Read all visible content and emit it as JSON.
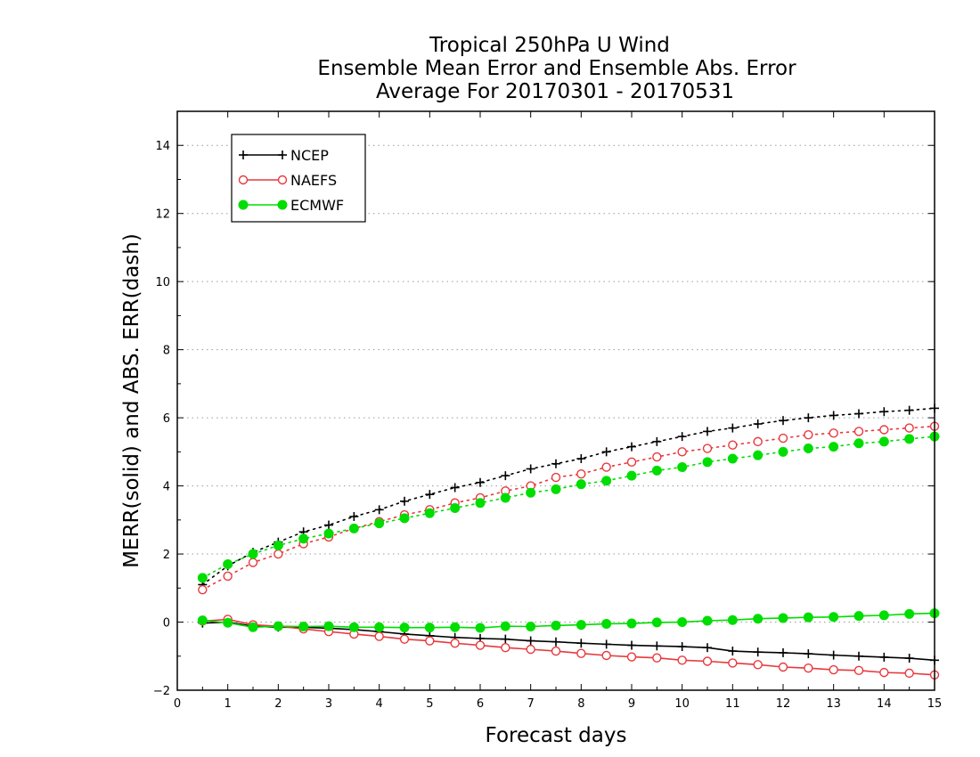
{
  "chart_data": {
    "type": "line",
    "title_lines": [
      "Tropical 250hPa U Wind",
      "Ensemble Mean Error and Ensemble Abs. Error",
      "Average For 20170301 - 20170531"
    ],
    "xlabel": "Forecast days",
    "ylabel": "MERR(solid) and ABS. ERR(dash)",
    "xlim": [
      0,
      15
    ],
    "ylim": [
      -2,
      15
    ],
    "x_ticks": [
      "0",
      "1",
      "2",
      "3",
      "4",
      "5",
      "6",
      "7",
      "8",
      "9",
      "10",
      "11",
      "12",
      "13",
      "14",
      "15"
    ],
    "y_ticks": [
      "−2",
      "0",
      "2",
      "4",
      "6",
      "8",
      "10",
      "12",
      "14"
    ],
    "y_tick_values": [
      -2,
      0,
      2,
      4,
      6,
      8,
      10,
      12,
      14
    ],
    "grid": "horizontal dotted",
    "legend_position": "top-left",
    "x": [
      0.5,
      1,
      1.5,
      2,
      2.5,
      3,
      3.5,
      4,
      4.5,
      5,
      5.5,
      6,
      6.5,
      7,
      7.5,
      8,
      8.5,
      9,
      9.5,
      10,
      10.5,
      11,
      11.5,
      12,
      12.5,
      13,
      13.5,
      14,
      14.5,
      15
    ],
    "series": [
      {
        "name": "NCEP",
        "color": "#000000",
        "marker": "plus",
        "mean_error": [
          -0.03,
          0.0,
          -0.12,
          -0.15,
          -0.15,
          -0.18,
          -0.22,
          -0.28,
          -0.35,
          -0.4,
          -0.45,
          -0.48,
          -0.5,
          -0.55,
          -0.58,
          -0.62,
          -0.65,
          -0.68,
          -0.7,
          -0.72,
          -0.75,
          -0.85,
          -0.88,
          -0.9,
          -0.93,
          -0.97,
          -1.0,
          -1.03,
          -1.06,
          -1.12
        ],
        "abs_error": [
          1.1,
          1.65,
          2.05,
          2.35,
          2.65,
          2.85,
          3.1,
          3.3,
          3.55,
          3.75,
          3.95,
          4.1,
          4.3,
          4.5,
          4.65,
          4.8,
          5.0,
          5.15,
          5.3,
          5.45,
          5.6,
          5.7,
          5.82,
          5.92,
          6.0,
          6.07,
          6.12,
          6.18,
          6.22,
          6.28
        ]
      },
      {
        "name": "NAEFS",
        "color": "#e8383d",
        "marker": "open-circle",
        "mean_error": [
          0.03,
          0.08,
          -0.08,
          -0.12,
          -0.2,
          -0.28,
          -0.35,
          -0.42,
          -0.5,
          -0.55,
          -0.62,
          -0.68,
          -0.75,
          -0.8,
          -0.85,
          -0.92,
          -0.98,
          -1.02,
          -1.05,
          -1.12,
          -1.15,
          -1.2,
          -1.25,
          -1.32,
          -1.35,
          -1.4,
          -1.42,
          -1.48,
          -1.5,
          -1.55
        ],
        "abs_error": [
          0.95,
          1.35,
          1.75,
          2.0,
          2.3,
          2.5,
          2.75,
          2.95,
          3.15,
          3.3,
          3.5,
          3.65,
          3.85,
          4.0,
          4.25,
          4.35,
          4.55,
          4.7,
          4.85,
          5.0,
          5.1,
          5.2,
          5.3,
          5.4,
          5.5,
          5.55,
          5.6,
          5.65,
          5.7,
          5.75
        ]
      },
      {
        "name": "ECMWF",
        "color": "#00dd00",
        "marker": "filled-circle",
        "mean_error": [
          0.05,
          -0.02,
          -0.15,
          -0.12,
          -0.13,
          -0.12,
          -0.15,
          -0.15,
          -0.16,
          -0.16,
          -0.15,
          -0.17,
          -0.12,
          -0.13,
          -0.1,
          -0.08,
          -0.05,
          -0.04,
          -0.01,
          0.0,
          0.04,
          0.06,
          0.1,
          0.12,
          0.14,
          0.15,
          0.18,
          0.2,
          0.24,
          0.26
        ],
        "abs_error": [
          1.3,
          1.7,
          2.0,
          2.25,
          2.45,
          2.6,
          2.75,
          2.9,
          3.05,
          3.2,
          3.35,
          3.5,
          3.65,
          3.8,
          3.9,
          4.05,
          4.15,
          4.3,
          4.45,
          4.55,
          4.7,
          4.8,
          4.9,
          5.0,
          5.1,
          5.15,
          5.25,
          5.3,
          5.38,
          5.45
        ]
      }
    ]
  }
}
